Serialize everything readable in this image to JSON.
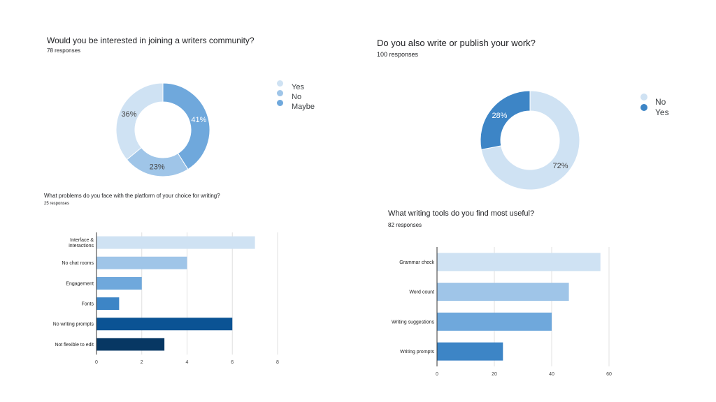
{
  "colors": {
    "shade1": "#cfe2f3",
    "shade2": "#9fc5e8",
    "shade3": "#6fa8dc",
    "shade4": "#3d85c6",
    "shade5": "#0b5394",
    "shade6": "#073763",
    "gridline": "#e0e0e0",
    "axis": "#333333"
  },
  "charts": [
    {
      "title": "Would you be interested in joining a writers community?",
      "responses": "78 responses"
    },
    {
      "title": "Do you also write or publish your work?",
      "responses": "100 responses"
    },
    {
      "title": "What problems do you face with the platform of your choice for writing?",
      "responses": "25 responses"
    },
    {
      "title": "What writing tools do you find most useful?",
      "responses": "82 responses"
    }
  ],
  "chart_data": [
    {
      "type": "pie",
      "donut": true,
      "title": "Would you be interested in joining a writers community?",
      "subtitle": "78 responses",
      "slices": [
        {
          "label": "Yes",
          "value": 36,
          "value_label": "36%",
          "color": "#cfe2f3"
        },
        {
          "label": "No",
          "value": 23,
          "value_label": "23%",
          "color": "#9fc5e8"
        },
        {
          "label": "Maybe",
          "value": 41,
          "value_label": "41%",
          "color": "#6fa8dc"
        }
      ],
      "legend": [
        "Yes",
        "No",
        "Maybe"
      ],
      "legend_position": "right"
    },
    {
      "type": "pie",
      "donut": true,
      "title": "Do you also write or publish your work?",
      "subtitle": "100 responses",
      "slices": [
        {
          "label": "No",
          "value": 72,
          "value_label": "72%",
          "color": "#cfe2f3"
        },
        {
          "label": "Yes",
          "value": 28,
          "value_label": "28%",
          "color": "#3d85c6"
        }
      ],
      "legend": [
        "No",
        "Yes"
      ],
      "legend_position": "right"
    },
    {
      "type": "bar",
      "orientation": "horizontal",
      "title": "What problems do you face with the platform of your choice for writing?",
      "subtitle": "25 responses",
      "categories": [
        [
          "Interface &",
          "interactions"
        ],
        [
          "No chat rooms"
        ],
        [
          "Engagement"
        ],
        [
          "Fonts"
        ],
        [
          "No writing prompts"
        ],
        [
          "Not flexible to edit"
        ]
      ],
      "values": [
        7,
        4,
        2,
        1,
        6,
        3
      ],
      "colors": [
        "#cfe2f3",
        "#9fc5e8",
        "#6fa8dc",
        "#3d85c6",
        "#0b5394",
        "#073763"
      ],
      "xlim": [
        0,
        8
      ],
      "xticks": [
        0,
        2,
        4,
        6,
        8
      ],
      "grid": true
    },
    {
      "type": "bar",
      "orientation": "horizontal",
      "title": "What writing tools do you find most useful?",
      "subtitle": "82 responses",
      "categories": [
        [
          "Grammar check"
        ],
        [
          "Word count"
        ],
        [
          "Writing suggestions"
        ],
        [
          "Writing prompts"
        ]
      ],
      "values": [
        57,
        46,
        40,
        23
      ],
      "colors": [
        "#cfe2f3",
        "#9fc5e8",
        "#6fa8dc",
        "#3d85c6"
      ],
      "xlim": [
        0,
        60
      ],
      "xticks": [
        0,
        20,
        40,
        60
      ],
      "grid": true
    }
  ]
}
